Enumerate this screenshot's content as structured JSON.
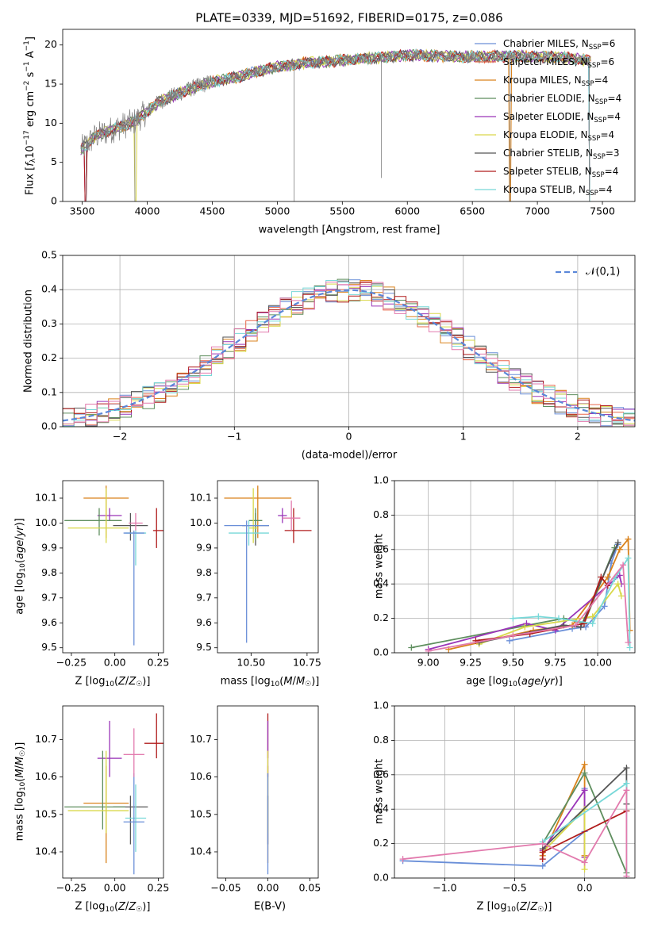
{
  "colors": {
    "Chabrier MILES": "#6a8fd8",
    "Salpeter MILES": "#e8674a",
    "Kroupa MILES": "#d9821c",
    "Chabrier ELODIE": "#5e8e5e",
    "Salpeter ELODIE": "#9a35b8",
    "Kroupa ELODIE": "#d9d84a",
    "Chabrier STELIB": "#555555",
    "Salpeter STELIB": "#b01c1c",
    "Kroupa STELIB": "#77d8d8",
    "pink": "#e27aad",
    "normal_curve": "#5b87d9"
  },
  "chart_data": [
    {
      "type": "line",
      "title": "PLATE=0339, MJD=51692, FIBERID=0175, z=0.086",
      "xlabel": "wavelength [Angstrom, rest frame]",
      "ylabel": "Flux [f_λ 10^-17 erg cm^-2 s^-1 A^-1]",
      "xlim": [
        3350,
        7750
      ],
      "ylim": [
        0,
        22
      ],
      "xticks": [
        "3500",
        "4000",
        "4500",
        "5000",
        "5500",
        "6000",
        "6500",
        "7000",
        "7500"
      ],
      "yticks": [
        "0",
        "5",
        "10",
        "15",
        "20"
      ],
      "legend_position": "right",
      "legend": [
        {
          "label": "Chabrier MILES, N",
          "sub": "SSP",
          "suffix": "=6"
        },
        {
          "label": "Salpeter MILES, N",
          "sub": "SSP",
          "suffix": "=6"
        },
        {
          "label": "Kroupa MILES, N",
          "sub": "SSP",
          "suffix": "=4"
        },
        {
          "label": "Chabrier ELODIE, N",
          "sub": "SSP",
          "suffix": "=4"
        },
        {
          "label": "Salpeter ELODIE, N",
          "sub": "SSP",
          "suffix": "=4"
        },
        {
          "label": "Kroupa ELODIE, N",
          "sub": "SSP",
          "suffix": "=4"
        },
        {
          "label": "Chabrier STELIB, N",
          "sub": "SSP",
          "suffix": "=3"
        },
        {
          "label": "Salpeter STELIB, N",
          "sub": "SSP",
          "suffix": "=4"
        },
        {
          "label": "Kroupa STELIB, N",
          "sub": "SSP",
          "suffix": "=4"
        }
      ],
      "continuum": {
        "x": [
          3480,
          3600,
          3700,
          3800,
          3900,
          4000,
          4100,
          4200,
          4300,
          4400,
          4500,
          4600,
          4700,
          4800,
          5000,
          5200,
          5400,
          5600,
          5800,
          6000,
          6200,
          6400,
          6600,
          6800,
          7000,
          7200,
          7400
        ],
        "y": [
          6.5,
          8.3,
          9.0,
          9.6,
          10.2,
          11.5,
          12.8,
          13.5,
          14.2,
          14.8,
          15.3,
          15.6,
          15.9,
          16.4,
          17.2,
          17.7,
          17.9,
          18.2,
          18.4,
          18.7,
          18.6,
          18.5,
          18.5,
          18.6,
          18.5,
          18.4,
          18.0
        ]
      }
    },
    {
      "type": "histogram",
      "xlabel": "(data-model)/error",
      "ylabel": "Normed distribution",
      "xlim": [
        -2.5,
        2.5
      ],
      "ylim": [
        0,
        0.5
      ],
      "xticks": [
        "−2",
        "−1",
        "0",
        "1",
        "2"
      ],
      "yticks": [
        "0.0",
        "0.1",
        "0.2",
        "0.3",
        "0.4",
        "0.5"
      ],
      "bin_width": 0.1,
      "legend": [
        {
          "label": "𝒩(0,1)"
        }
      ],
      "legend_position": "top-right",
      "grid": true
    },
    {
      "type": "errorbar",
      "xlabel": "Z [log10(Z/Z☉)]",
      "ylabel": "age [log10(age/yr)]",
      "xlim": [
        -0.3,
        0.28
      ],
      "ylim": [
        9.48,
        10.17
      ],
      "xticks": [
        "−0.25",
        "0.00",
        "0.25"
      ],
      "yticks": [
        "9.5",
        "9.6",
        "9.7",
        "9.8",
        "9.9",
        "10.0",
        "10.1"
      ],
      "points": [
        {
          "color": "#d9821c",
          "x": -0.05,
          "y": 10.1,
          "xerr": [
            0.13,
            0.13
          ],
          "yerr": [
            0.16,
            0.05
          ]
        },
        {
          "color": "#b01c1c",
          "x": 0.24,
          "y": 9.97,
          "xerr": [
            0.02,
            0.04
          ],
          "yerr": [
            0.07,
            0.09
          ]
        },
        {
          "color": "#555555",
          "x": 0.09,
          "y": 9.99,
          "xerr": [
            0.1,
            0.1
          ],
          "yerr": [
            0.06,
            0.05
          ]
        },
        {
          "color": "#9a35b8",
          "x": -0.03,
          "y": 10.03,
          "xerr": [
            0.07,
            0.07
          ],
          "yerr": [
            0.02,
            0.03
          ]
        },
        {
          "color": "#5e8e5e",
          "x": -0.09,
          "y": 10.01,
          "xerr": [
            0.2,
            0.13
          ],
          "yerr": [
            0.06,
            0.05
          ]
        },
        {
          "color": "#d9d84a",
          "x": -0.05,
          "y": 9.98,
          "xerr": [
            0.22,
            0.13
          ],
          "yerr": [
            0.06,
            0.16
          ]
        },
        {
          "color": "#77d8d8",
          "x": 0.12,
          "y": 9.96,
          "xerr": [
            0.06,
            0.06
          ],
          "yerr": [
            0.13,
            0.01
          ]
        },
        {
          "color": "#6a8fd8",
          "x": 0.11,
          "y": 9.96,
          "xerr": [
            0.06,
            0.06
          ],
          "yerr": [
            0.45,
            0.01
          ]
        },
        {
          "color": "#e27aad",
          "x": 0.12,
          "y": 10.0,
          "xerr": [
            0.04,
            0.04
          ],
          "yerr": [
            0.03,
            0.04
          ]
        }
      ]
    },
    {
      "type": "errorbar",
      "xlabel": "mass [log10(M/M☉)]",
      "ylabel": "",
      "xlim": [
        10.35,
        10.8
      ],
      "ylim": [
        9.48,
        10.17
      ],
      "xticks": [
        "10.50",
        "10.75"
      ],
      "yticks": [
        "9.5",
        "9.6",
        "9.7",
        "9.8",
        "9.9",
        "10.0",
        "10.1"
      ],
      "points": [
        {
          "color": "#d9821c",
          "x": 10.53,
          "y": 10.1,
          "xerr": [
            0.15,
            0.15
          ],
          "yerr": [
            0.16,
            0.05
          ]
        },
        {
          "color": "#b01c1c",
          "x": 10.69,
          "y": 9.97,
          "xerr": [
            0.04,
            0.08
          ],
          "yerr": [
            0.05,
            0.09
          ]
        },
        {
          "color": "#555555",
          "x": 10.52,
          "y": 9.99,
          "xerr": [
            0.06,
            0.06
          ],
          "yerr": [
            0.08,
            0.05
          ]
        },
        {
          "color": "#9a35b8",
          "x": 10.64,
          "y": 10.03,
          "xerr": [
            0.02,
            0.02
          ],
          "yerr": [
            0.03,
            0.03
          ]
        },
        {
          "color": "#5e8e5e",
          "x": 10.52,
          "y": 10.01,
          "xerr": [
            0.03,
            0.03
          ],
          "yerr": [
            0.08,
            0.05
          ]
        },
        {
          "color": "#d9d84a",
          "x": 10.51,
          "y": 9.98,
          "xerr": [
            0.02,
            0.02
          ],
          "yerr": [
            0.06,
            0.16
          ]
        },
        {
          "color": "#77d8d8",
          "x": 10.49,
          "y": 9.96,
          "xerr": [
            0.09,
            0.09
          ],
          "yerr": [
            0.05,
            0.05
          ]
        },
        {
          "color": "#6a8fd8",
          "x": 10.48,
          "y": 9.99,
          "xerr": [
            0.1,
            0.1
          ],
          "yerr": [
            0.47,
            0.02
          ]
        },
        {
          "color": "#e27aad",
          "x": 10.68,
          "y": 10.02,
          "xerr": [
            0.04,
            0.04
          ],
          "yerr": [
            0.05,
            0.07
          ]
        }
      ]
    },
    {
      "type": "line",
      "xlabel": "age [log10(age/yr)]",
      "ylabel": "mass weight",
      "xlim": [
        8.8,
        10.22
      ],
      "ylim": [
        0,
        1
      ],
      "xticks": [
        "9.00",
        "9.25",
        "9.50",
        "9.75",
        "10.00"
      ],
      "yticks": [
        "0.0",
        "0.2",
        "0.4",
        "0.6",
        "0.8",
        "1.0"
      ],
      "grid": true,
      "series": [
        {
          "color": "#6a8fd8",
          "x": [
            9.48,
            9.85,
            9.93,
            10.04,
            10.08,
            10.12
          ],
          "y": [
            0.07,
            0.14,
            0.15,
            0.27,
            0.52,
            0.63
          ]
        },
        {
          "color": "#d9821c",
          "x": [
            9.12,
            9.62,
            9.85,
            10.06,
            10.13,
            10.18,
            10.19
          ],
          "y": [
            0.02,
            0.13,
            0.16,
            0.44,
            0.6,
            0.66,
            0.13
          ]
        },
        {
          "color": "#5e8e5e",
          "x": [
            8.9,
            9.8,
            9.92,
            10.1
          ],
          "y": [
            0.03,
            0.2,
            0.17,
            0.61
          ]
        },
        {
          "color": "#9a35b8",
          "x": [
            9.0,
            9.58,
            9.75,
            10.13,
            10.14
          ],
          "y": [
            0.02,
            0.17,
            0.13,
            0.45,
            0.4
          ]
        },
        {
          "color": "#d9d84a",
          "x": [
            9.3,
            9.57,
            9.97,
            10.12,
            10.14
          ],
          "y": [
            0.05,
            0.15,
            0.21,
            0.4,
            0.33
          ]
        },
        {
          "color": "#555555",
          "x": [
            9.3,
            9.8,
            9.9,
            10.12
          ],
          "y": [
            0.06,
            0.16,
            0.15,
            0.64
          ]
        },
        {
          "color": "#b01c1c",
          "x": [
            9.28,
            9.6,
            9.92,
            10.02,
            10.06
          ],
          "y": [
            0.07,
            0.11,
            0.17,
            0.44,
            0.39
          ]
        },
        {
          "color": "#77d8d8",
          "x": [
            9.5,
            9.65,
            9.77,
            9.97,
            10.1,
            10.18,
            10.19
          ],
          "y": [
            0.2,
            0.21,
            0.2,
            0.17,
            0.43,
            0.55,
            0.03
          ]
        },
        {
          "color": "#e27aad",
          "x": [
            9.0,
            9.5,
            9.87,
            10.15,
            10.18
          ],
          "y": [
            0.01,
            0.1,
            0.16,
            0.51,
            0.06
          ]
        }
      ]
    },
    {
      "type": "errorbar",
      "xlabel": "Z [log10(Z/Z☉)]",
      "ylabel": "mass [log10(M/M☉)]",
      "xlim": [
        -0.3,
        0.28
      ],
      "ylim": [
        10.33,
        10.79
      ],
      "xticks": [
        "−0.25",
        "0.00",
        "0.25"
      ],
      "yticks": [
        "10.4",
        "10.5",
        "10.6",
        "10.7"
      ],
      "points": [
        {
          "color": "#d9821c",
          "x": -0.05,
          "y": 10.53,
          "xerr": [
            0.13,
            0.13
          ],
          "yerr": [
            0.16,
            0.1
          ]
        },
        {
          "color": "#b01c1c",
          "x": 0.24,
          "y": 10.69,
          "xerr": [
            0.07,
            0.04
          ],
          "yerr": [
            0.04,
            0.08
          ]
        },
        {
          "color": "#555555",
          "x": 0.09,
          "y": 10.52,
          "xerr": [
            0.1,
            0.1
          ],
          "yerr": [
            0.1,
            0.03
          ]
        },
        {
          "color": "#9a35b8",
          "x": -0.03,
          "y": 10.65,
          "xerr": [
            0.07,
            0.07
          ],
          "yerr": [
            0.05,
            0.1
          ]
        },
        {
          "color": "#5e8e5e",
          "x": -0.07,
          "y": 10.52,
          "xerr": [
            0.22,
            0.13
          ],
          "yerr": [
            0.06,
            0.15
          ]
        },
        {
          "color": "#d9d84a",
          "x": -0.05,
          "y": 10.51,
          "xerr": [
            0.22,
            0.13
          ],
          "yerr": [
            0.06,
            0.16
          ]
        },
        {
          "color": "#77d8d8",
          "x": 0.12,
          "y": 10.49,
          "xerr": [
            0.06,
            0.06
          ],
          "yerr": [
            0.09,
            0.09
          ]
        },
        {
          "color": "#6a8fd8",
          "x": 0.11,
          "y": 10.48,
          "xerr": [
            0.06,
            0.06
          ],
          "yerr": [
            0.14,
            0.13
          ]
        },
        {
          "color": "#e27aad",
          "x": 0.11,
          "y": 10.66,
          "xerr": [
            0.06,
            0.06
          ],
          "yerr": [
            0.06,
            0.07
          ]
        }
      ]
    },
    {
      "type": "errorbar",
      "xlabel": "E(B-V)",
      "ylabel": "",
      "xlim": [
        -0.06,
        0.06
      ],
      "ylim": [
        10.33,
        10.79
      ],
      "xticks": [
        "−0.05",
        "0.00",
        "0.05"
      ],
      "yticks": [
        "10.4",
        "10.5",
        "10.6",
        "10.7"
      ],
      "points": [
        {
          "color": "#d9821c",
          "x": 0.0,
          "y": 10.53,
          "xerr": [
            0,
            0
          ],
          "yerr": [
            0.16,
            0.1
          ]
        },
        {
          "color": "#b01c1c",
          "x": 0.0,
          "y": 10.69,
          "xerr": [
            0,
            0
          ],
          "yerr": [
            0.04,
            0.08
          ]
        },
        {
          "color": "#555555",
          "x": 0.0,
          "y": 10.52,
          "xerr": [
            0,
            0
          ],
          "yerr": [
            0.1,
            0.03
          ]
        },
        {
          "color": "#9a35b8",
          "x": 0.0,
          "y": 10.65,
          "xerr": [
            0,
            0
          ],
          "yerr": [
            0.05,
            0.1
          ]
        },
        {
          "color": "#d9d84a",
          "x": 0.0,
          "y": 10.51,
          "xerr": [
            0,
            0
          ],
          "yerr": [
            0.06,
            0.16
          ]
        },
        {
          "color": "#6a8fd8",
          "x": 0.0,
          "y": 10.48,
          "xerr": [
            0,
            0
          ],
          "yerr": [
            0.14,
            0.13
          ]
        }
      ]
    },
    {
      "type": "line",
      "xlabel": "Z [log10(Z/Z☉)]",
      "ylabel": "mass weight",
      "xlim": [
        -1.36,
        0.36
      ],
      "ylim": [
        0,
        1
      ],
      "xticks": [
        "−1.0",
        "−0.5",
        "0.0"
      ],
      "yticks": [
        "0.0",
        "0.2",
        "0.4",
        "0.6",
        "0.8",
        "1.0"
      ],
      "grid": true,
      "series": [
        {
          "color": "#6a8fd8",
          "x": [
            -1.3,
            -0.3,
            0.0,
            0.0
          ],
          "y": [
            0.1,
            0.07,
            0.27,
            0.52
          ]
        },
        {
          "color": "#d9821c",
          "x": [
            -0.3,
            0.0,
            0.0
          ],
          "y": [
            0.13,
            0.66,
            0.13
          ]
        },
        {
          "color": "#5e8e5e",
          "x": [
            -0.3,
            0.0,
            0.3
          ],
          "y": [
            0.2,
            0.61,
            0.03
          ]
        },
        {
          "color": "#9a35b8",
          "x": [
            -0.3,
            0.0,
            0.0
          ],
          "y": [
            0.16,
            0.51,
            0.12
          ]
        },
        {
          "color": "#d9d84a",
          "x": [
            -0.3,
            0.0,
            0.0
          ],
          "y": [
            0.15,
            0.4,
            0.05
          ]
        },
        {
          "color": "#555555",
          "x": [
            -0.3,
            0.3,
            0.3
          ],
          "y": [
            0.17,
            0.64,
            0.43
          ]
        },
        {
          "color": "#b01c1c",
          "x": [
            -0.3,
            -0.3,
            0.3
          ],
          "y": [
            0.11,
            0.15,
            0.39
          ]
        },
        {
          "color": "#77d8d8",
          "x": [
            -0.3,
            0.3,
            0.3
          ],
          "y": [
            0.21,
            0.55,
            0.01
          ]
        },
        {
          "color": "#e27aad",
          "x": [
            -1.3,
            -0.3,
            0.0,
            0.3,
            0.3
          ],
          "y": [
            0.11,
            0.2,
            0.09,
            0.51,
            0.01
          ]
        }
      ]
    }
  ]
}
